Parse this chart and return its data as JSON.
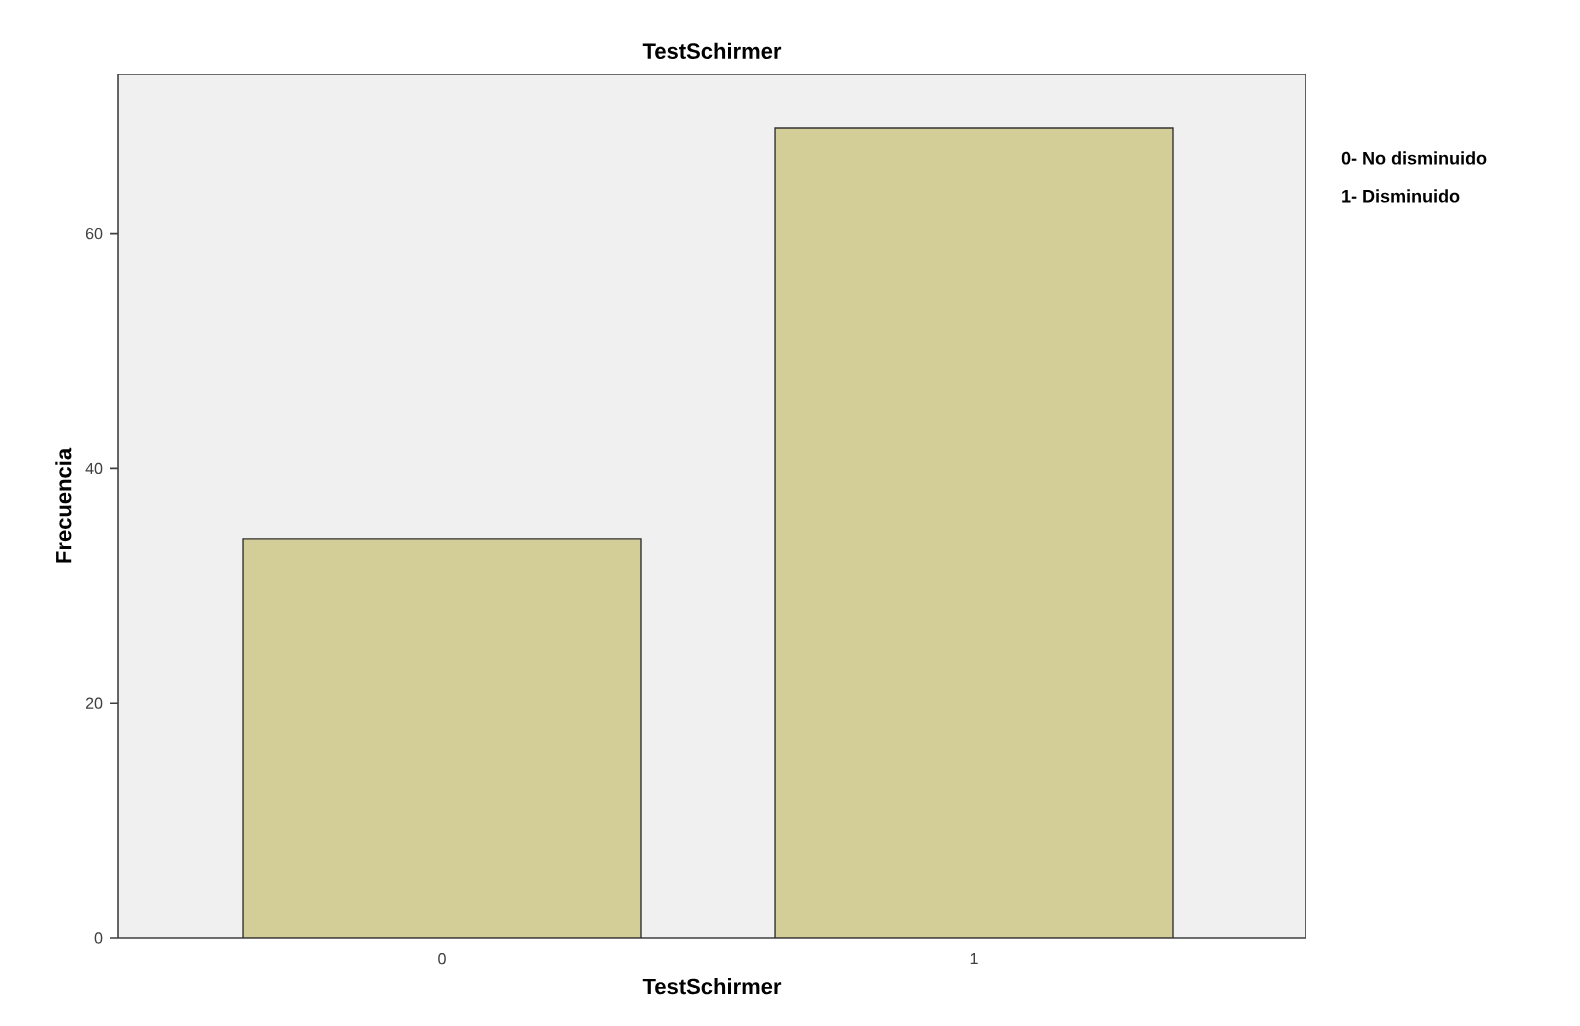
{
  "chart_data": {
    "type": "bar",
    "title": "TestSchirmer",
    "xlabel": "TestSchirmer",
    "ylabel": "Frecuencia",
    "categories": [
      "0",
      "1"
    ],
    "values": [
      34,
      69
    ],
    "color": "#d3cd97",
    "ylim": [
      0,
      73.6
    ],
    "yticks": [
      0,
      20,
      40,
      60
    ],
    "annotations": [
      "0- No disminuido",
      "1- Disminuido"
    ]
  }
}
